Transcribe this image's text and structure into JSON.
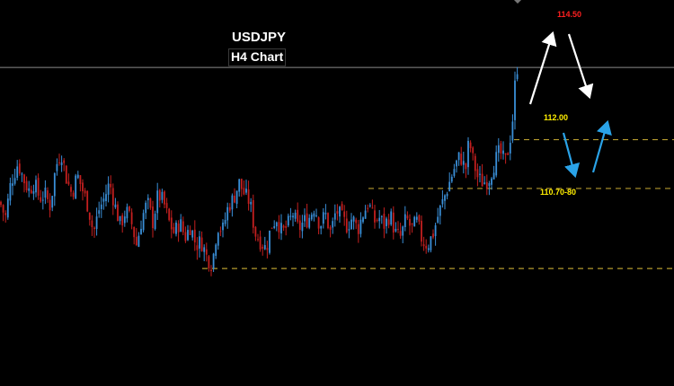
{
  "header": {
    "symbol": "USDJPY",
    "timeframe": "H4 Chart"
  },
  "colors": {
    "background": "#000000",
    "bull": "#3a8fd8",
    "bear": "#c41f1f",
    "level_line": "#b59a2e",
    "level_label": "#ffee00",
    "target_label": "#ff2020",
    "white_arrow": "#ffffff",
    "blue_arrow": "#2aa3e8",
    "price_line": "#8a8a8a"
  },
  "chart_data": {
    "type": "candlestick",
    "instrument": "USDJPY",
    "timeframe": "H4",
    "ylim": [
      107.6,
      115.3
    ],
    "current_price_line": 113.85,
    "levels": [
      {
        "label": "112.00",
        "value": 112.0
      },
      {
        "label": "110.70-80",
        "value": 110.75
      },
      {
        "label": "",
        "value": 108.7
      }
    ],
    "target": {
      "label": "114.50",
      "value": 114.5
    },
    "path": [
      [
        0,
        110.4
      ],
      [
        6,
        110.0
      ],
      [
        12,
        110.9
      ],
      [
        20,
        111.4
      ],
      [
        26,
        111.0
      ],
      [
        32,
        110.7
      ],
      [
        38,
        110.9
      ],
      [
        44,
        110.5
      ],
      [
        50,
        110.6
      ],
      [
        56,
        110.3
      ],
      [
        62,
        111.3
      ],
      [
        68,
        111.7
      ],
      [
        74,
        111.0
      ],
      [
        80,
        110.6
      ],
      [
        86,
        111.1
      ],
      [
        92,
        110.7
      ],
      [
        98,
        110.3
      ],
      [
        104,
        109.6
      ],
      [
        110,
        110.2
      ],
      [
        116,
        110.5
      ],
      [
        122,
        110.9
      ],
      [
        128,
        110.3
      ],
      [
        134,
        109.8
      ],
      [
        140,
        110.2
      ],
      [
        146,
        109.9
      ],
      [
        152,
        109.3
      ],
      [
        158,
        110.0
      ],
      [
        164,
        110.4
      ],
      [
        170,
        109.9
      ],
      [
        176,
        110.6
      ],
      [
        182,
        110.4
      ],
      [
        188,
        109.9
      ],
      [
        194,
        109.6
      ],
      [
        200,
        109.9
      ],
      [
        206,
        109.5
      ],
      [
        212,
        109.8
      ],
      [
        218,
        109.3
      ],
      [
        224,
        109.4
      ],
      [
        230,
        109.0
      ],
      [
        236,
        108.8
      ],
      [
        242,
        109.8
      ],
      [
        248,
        109.7
      ],
      [
        254,
        110.3
      ],
      [
        260,
        110.5
      ],
      [
        266,
        110.9
      ],
      [
        272,
        110.6
      ],
      [
        278,
        110.4
      ],
      [
        284,
        109.6
      ],
      [
        290,
        109.4
      ],
      [
        296,
        109.2
      ],
      [
        302,
        109.8
      ],
      [
        308,
        110.0
      ],
      [
        314,
        109.6
      ],
      [
        320,
        109.8
      ],
      [
        326,
        110.1
      ],
      [
        332,
        109.7
      ],
      [
        338,
        109.9
      ],
      [
        344,
        110.0
      ],
      [
        350,
        110.3
      ],
      [
        356,
        109.8
      ],
      [
        362,
        110.1
      ],
      [
        368,
        109.6
      ],
      [
        374,
        110.2
      ],
      [
        380,
        110.0
      ],
      [
        386,
        109.8
      ],
      [
        392,
        110.0
      ],
      [
        398,
        109.7
      ],
      [
        404,
        110.1
      ],
      [
        410,
        110.4
      ],
      [
        416,
        109.9
      ],
      [
        422,
        110.0
      ],
      [
        428,
        109.8
      ],
      [
        434,
        110.1
      ],
      [
        440,
        109.6
      ],
      [
        446,
        109.5
      ],
      [
        452,
        110.0
      ],
      [
        458,
        109.7
      ],
      [
        464,
        109.9
      ],
      [
        470,
        109.4
      ],
      [
        476,
        109.3
      ],
      [
        482,
        109.6
      ],
      [
        488,
        110.1
      ],
      [
        494,
        110.5
      ],
      [
        500,
        110.9
      ],
      [
        506,
        111.3
      ],
      [
        512,
        111.6
      ],
      [
        518,
        111.2
      ],
      [
        522,
        112.0
      ],
      [
        526,
        111.5
      ],
      [
        532,
        111.0
      ],
      [
        538,
        110.9
      ],
      [
        544,
        111.0
      ],
      [
        550,
        111.4
      ],
      [
        556,
        111.7
      ],
      [
        562,
        111.4
      ],
      [
        566,
        111.8
      ],
      [
        570,
        112.4
      ],
      [
        574,
        113.7
      ],
      [
        578,
        114.1
      ]
    ]
  }
}
